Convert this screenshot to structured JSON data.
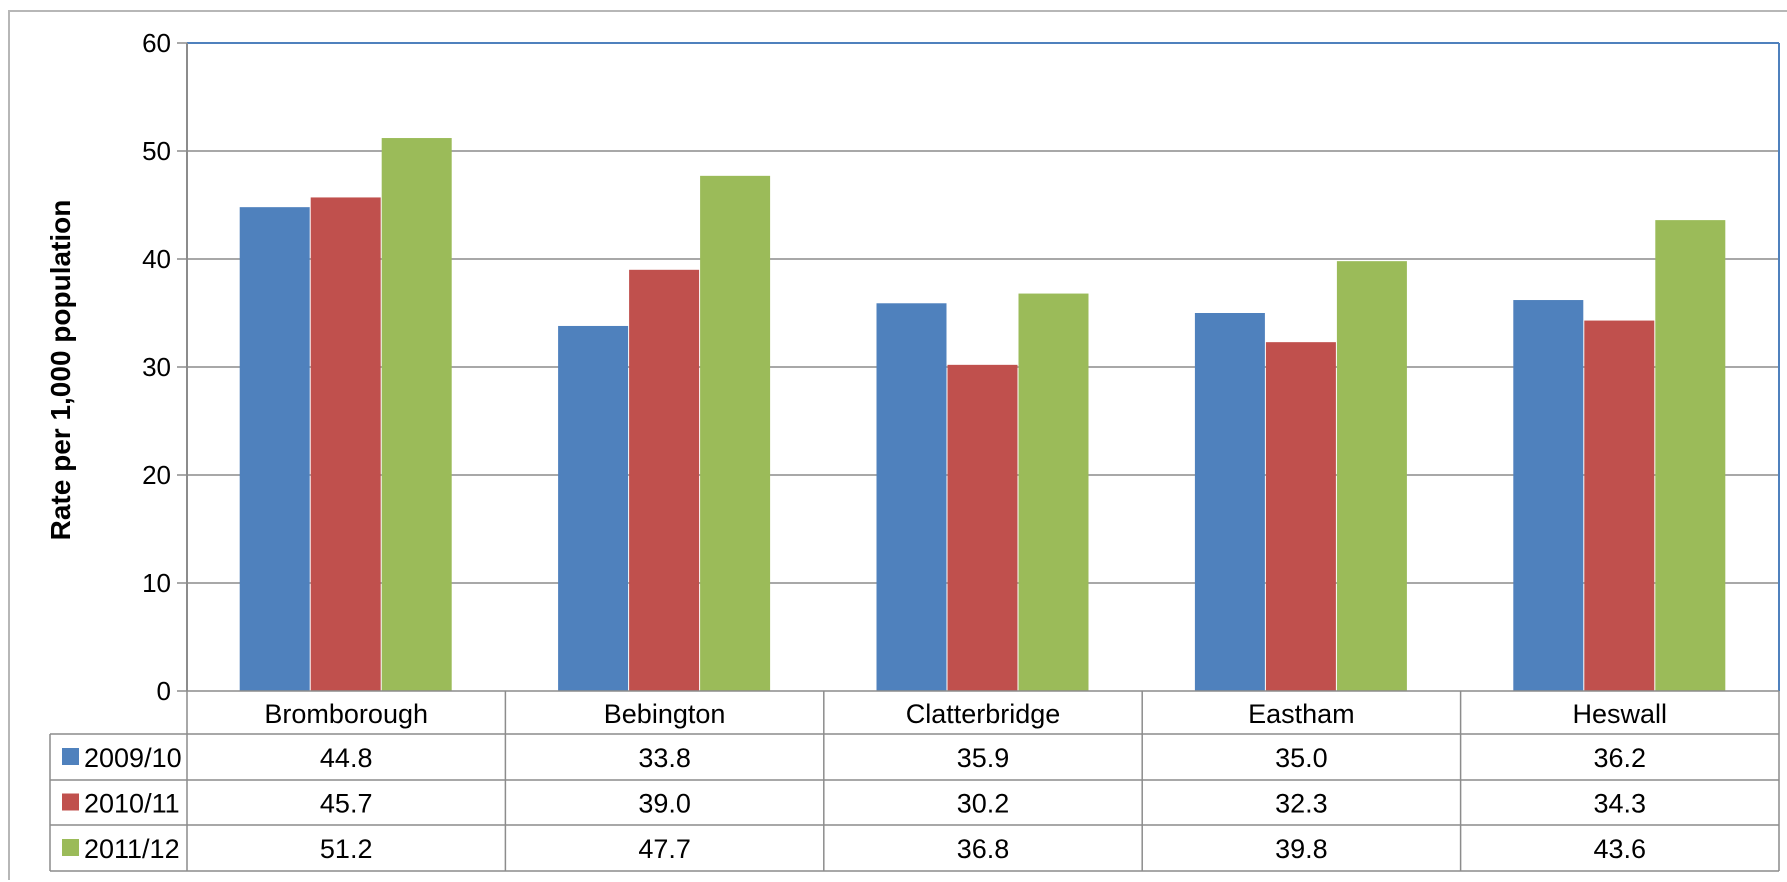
{
  "chart_data": {
    "type": "bar",
    "title": "",
    "xlabel": "",
    "ylabel": "Rate per 1,000 population",
    "ylim": [
      0,
      60
    ],
    "yticks": [
      "0",
      "10",
      "20",
      "30",
      "40",
      "50",
      "60"
    ],
    "grid": true,
    "legend": "data-table",
    "categories": [
      "Bromborough",
      "Bebington",
      "Clatterbridge",
      "Eastham",
      "Heswall"
    ],
    "series": [
      {
        "name": "2009/10",
        "color": "#4f81bd",
        "values": [
          44.8,
          33.8,
          35.9,
          35.0,
          36.2
        ],
        "labels": [
          "44.8",
          "33.8",
          "35.9",
          "35.0",
          "36.2"
        ]
      },
      {
        "name": "2010/11",
        "color": "#c0504d",
        "values": [
          45.7,
          39.0,
          30.2,
          32.3,
          34.3
        ],
        "labels": [
          "45.7",
          "39.0",
          "30.2",
          "32.3",
          "34.3"
        ]
      },
      {
        "name": "2011/12",
        "color": "#9bbb59",
        "values": [
          51.2,
          47.7,
          36.8,
          39.8,
          43.6
        ],
        "labels": [
          "51.2",
          "47.7",
          "36.8",
          "39.8",
          "43.6"
        ]
      }
    ]
  }
}
